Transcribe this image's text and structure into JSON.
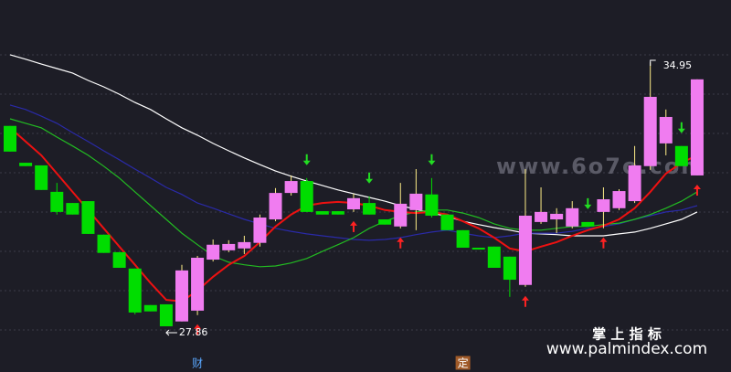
{
  "chart_data": {
    "type": "candlestick",
    "ylim": [
      27.05,
      36.62
    ],
    "up_color": "#f07cf0",
    "down_color": "#00dd00",
    "categories": [
      null,
      null,
      null,
      null,
      null,
      null,
      null,
      null,
      null,
      null,
      null,
      null,
      "财",
      null,
      null,
      null,
      null,
      null,
      null,
      null,
      null,
      null,
      null,
      null,
      null,
      null,
      null,
      null,
      null,
      "定",
      null,
      null,
      null,
      null,
      null,
      null,
      null,
      null,
      null,
      null,
      null,
      null,
      null,
      null,
      null
    ],
    "open": [
      33.24,
      32.25,
      32.18,
      31.47,
      31.17,
      31.22,
      30.32,
      29.85,
      29.41,
      28.43,
      28.45,
      27.99,
      28.28,
      29.65,
      29.9,
      29.95,
      30.1,
      30.73,
      31.44,
      31.76,
      30.95,
      30.95,
      31.0,
      31.17,
      30.73,
      30.54,
      30.98,
      31.4,
      30.86,
      30.44,
      29.97,
      30.0,
      29.73,
      28.97,
      30.66,
      30.73,
      30.54,
      30.66,
      30.93,
      31.03,
      31.22,
      32.16,
      32.77,
      32.7,
      31.91
    ],
    "high": [
      33.24,
      32.25,
      32.18,
      31.71,
      31.17,
      31.22,
      30.32,
      29.85,
      29.41,
      28.43,
      28.45,
      29.51,
      29.75,
      30.19,
      30.17,
      30.29,
      30.86,
      31.57,
      31.91,
      31.84,
      30.95,
      30.95,
      31.42,
      31.35,
      30.73,
      31.71,
      32.08,
      31.84,
      30.86,
      30.44,
      29.97,
      30.0,
      29.73,
      32.08,
      31.59,
      31.03,
      31.22,
      30.66,
      31.59,
      31.54,
      32.7,
      34.95,
      33.68,
      32.7,
      34.49
    ],
    "low": [
      32.55,
      32.16,
      31.52,
      30.86,
      30.86,
      30.34,
      29.83,
      29.43,
      28.18,
      28.26,
      27.86,
      27.99,
      28.16,
      29.6,
      29.85,
      29.8,
      30.0,
      30.68,
      31.37,
      30.93,
      30.86,
      30.86,
      30.93,
      30.86,
      30.59,
      30.49,
      30.44,
      30.78,
      30.44,
      29.97,
      29.92,
      29.43,
      28.65,
      28.92,
      30.61,
      30.36,
      30.49,
      30.54,
      30.49,
      30.98,
      31.17,
      32.06,
      32.45,
      32.16,
      31.91
    ],
    "close": [
      32.55,
      32.16,
      31.52,
      30.93,
      30.86,
      30.34,
      29.83,
      29.43,
      28.23,
      28.26,
      27.86,
      29.36,
      29.7,
      30.05,
      30.07,
      30.12,
      30.78,
      31.44,
      31.76,
      30.93,
      30.86,
      30.86,
      31.3,
      30.86,
      30.59,
      31.15,
      31.42,
      30.83,
      30.44,
      29.97,
      29.92,
      29.43,
      29.11,
      30.83,
      30.93,
      30.88,
      31.03,
      30.54,
      31.27,
      31.49,
      32.18,
      34.02,
      33.48,
      32.16,
      34.49
    ],
    "lines": [
      {
        "color": "#ffffff",
        "values": [
          35.15,
          35.03,
          34.9,
          34.78,
          34.66,
          34.46,
          34.29,
          34.09,
          33.87,
          33.68,
          33.43,
          33.19,
          32.99,
          32.77,
          32.57,
          32.38,
          32.2,
          32.03,
          31.89,
          31.76,
          31.64,
          31.52,
          31.42,
          31.32,
          31.22,
          31.1,
          31.0,
          30.9,
          30.81,
          30.68,
          30.59,
          30.51,
          30.44,
          30.36,
          30.34,
          30.32,
          30.29,
          30.29,
          30.29,
          30.34,
          30.39,
          30.49,
          30.61,
          30.73,
          30.93
        ]
      },
      {
        "color": "#2a2aa8",
        "values": [
          33.8,
          33.68,
          33.5,
          33.31,
          33.06,
          32.82,
          32.57,
          32.33,
          32.08,
          31.84,
          31.59,
          31.4,
          31.17,
          31.03,
          30.88,
          30.73,
          30.61,
          30.49,
          30.41,
          30.34,
          30.29,
          30.24,
          30.19,
          30.17,
          30.19,
          30.24,
          30.32,
          30.39,
          30.44,
          30.36,
          30.29,
          30.24,
          30.29,
          30.36,
          30.36,
          30.36,
          30.41,
          30.49,
          30.54,
          30.61,
          30.73,
          30.83,
          30.93,
          30.98,
          31.1
        ]
      },
      {
        "color": "#22bb22",
        "values": [
          33.43,
          33.31,
          33.19,
          32.94,
          32.7,
          32.45,
          32.16,
          31.84,
          31.47,
          31.1,
          30.73,
          30.36,
          30.05,
          29.75,
          29.58,
          29.51,
          29.46,
          29.48,
          29.56,
          29.68,
          29.87,
          30.05,
          30.24,
          30.49,
          30.68,
          30.83,
          30.93,
          30.98,
          30.98,
          30.9,
          30.78,
          30.61,
          30.49,
          30.44,
          30.44,
          30.49,
          30.54,
          30.54,
          30.59,
          30.63,
          30.73,
          30.86,
          31.03,
          31.22,
          31.47
        ]
      },
      {
        "color": "#ee1111",
        "values": [
          33.19,
          32.82,
          32.45,
          31.96,
          31.47,
          30.98,
          30.49,
          30.0,
          29.51,
          29.02,
          28.57,
          28.53,
          28.82,
          29.19,
          29.51,
          29.75,
          30.12,
          30.54,
          30.86,
          31.1,
          31.17,
          31.2,
          31.17,
          31.1,
          30.98,
          30.93,
          30.9,
          30.93,
          30.86,
          30.68,
          30.49,
          30.24,
          29.95,
          29.87,
          30.0,
          30.12,
          30.29,
          30.44,
          30.56,
          30.73,
          31.03,
          31.47,
          31.96,
          32.25,
          32.45
        ]
      }
    ],
    "buy_signals": [
      12,
      22,
      25,
      33,
      38,
      44
    ],
    "sell_signals": [
      19,
      23,
      27,
      37,
      43
    ],
    "high_label": "34.95",
    "low_label": "27.86",
    "watermarks": [
      "www.6o7o.com",
      "掌 上 指 标",
      "www.palmindex.com"
    ]
  }
}
